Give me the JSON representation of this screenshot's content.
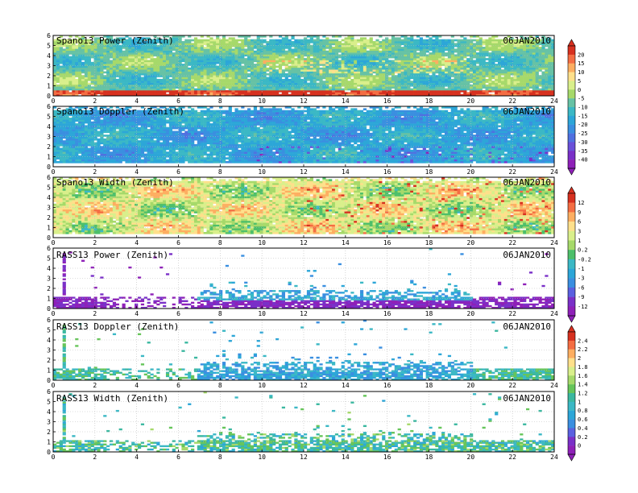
{
  "chart_data": [
    {
      "type": "heatmap",
      "title": "Spano13 Power (Zenith)",
      "date": "06JAN2010",
      "xlim": [
        0,
        24
      ],
      "ylim": [
        0,
        6
      ],
      "x_ticks": [
        "0",
        "2",
        "4",
        "6",
        "8",
        "10",
        "12",
        "14",
        "16",
        "18",
        "20",
        "22",
        "24"
      ],
      "y_ticks": [
        "0",
        "1",
        "2",
        "3",
        "4",
        "5",
        "6"
      ],
      "grid": true,
      "colorbar": "power"
    },
    {
      "type": "heatmap",
      "title": "Spano13 Doppler (Zenith)",
      "date": "06JAN2010",
      "xlim": [
        0,
        24
      ],
      "ylim": [
        0,
        6
      ],
      "x_ticks": [
        "0",
        "2",
        "4",
        "6",
        "8",
        "10",
        "12",
        "14",
        "16",
        "18",
        "20",
        "22",
        "24"
      ],
      "y_ticks": [
        "0",
        "1",
        "2",
        "3",
        "4",
        "5",
        "6"
      ],
      "grid": true,
      "colorbar": "power"
    },
    {
      "type": "heatmap",
      "title": "Spano13 Width (Zenith)",
      "date": "06JAN2010",
      "xlim": [
        0,
        24
      ],
      "ylim": [
        0,
        6
      ],
      "x_ticks": [
        "0",
        "2",
        "4",
        "6",
        "8",
        "10",
        "12",
        "14",
        "16",
        "18",
        "20",
        "22",
        "24"
      ],
      "y_ticks": [
        "0",
        "1",
        "2",
        "3",
        "4",
        "5",
        "6"
      ],
      "grid": true,
      "colorbar": "doppler"
    },
    {
      "type": "heatmap",
      "title": "RASS13 Power (Zenith)",
      "date": "06JAN2010",
      "xlim": [
        0,
        24
      ],
      "ylim": [
        0,
        6
      ],
      "x_ticks": [
        "0",
        "2",
        "4",
        "6",
        "8",
        "10",
        "12",
        "14",
        "16",
        "18",
        "20",
        "22",
        "24"
      ],
      "y_ticks": [
        "0",
        "1",
        "2",
        "3",
        "4",
        "5",
        "6"
      ],
      "grid": true,
      "colorbar": "doppler"
    },
    {
      "type": "heatmap",
      "title": "RASS13 Doppler (Zenith)",
      "date": "06JAN2010",
      "xlim": [
        0,
        24
      ],
      "ylim": [
        0,
        6
      ],
      "x_ticks": [
        "0",
        "2",
        "4",
        "6",
        "8",
        "10",
        "12",
        "14",
        "16",
        "18",
        "20",
        "22",
        "24"
      ],
      "y_ticks": [
        "0",
        "1",
        "2",
        "3",
        "4",
        "5",
        "6"
      ],
      "grid": true,
      "colorbar": "width"
    },
    {
      "type": "heatmap",
      "title": "RASS13 Width (Zenith)",
      "date": "06JAN2010",
      "xlim": [
        0,
        24
      ],
      "ylim": [
        0,
        6
      ],
      "x_ticks": [
        "0",
        "2",
        "4",
        "6",
        "8",
        "10",
        "12",
        "14",
        "16",
        "18",
        "20",
        "22",
        "24"
      ],
      "y_ticks": [
        "0",
        "1",
        "2",
        "3",
        "4",
        "5",
        "6"
      ],
      "grid": true,
      "colorbar": "width"
    }
  ],
  "colorbars": {
    "power": {
      "labels": [
        "20",
        "15",
        "10",
        "5",
        "0",
        "-5",
        "-10",
        "-15",
        "-20",
        "-25",
        "-30",
        "-35",
        "-40"
      ],
      "colors": [
        "#d7301f",
        "#f46d43",
        "#fdae61",
        "#fee08b",
        "#d9ef8b",
        "#a6d96a",
        "#66c2a5",
        "#3bb8c5",
        "#2ca6d8",
        "#3a8fe0",
        "#5070e0",
        "#6a50d8",
        "#7a30c8",
        "#8e20b8"
      ]
    },
    "doppler": {
      "labels": [
        "12",
        "9",
        "6",
        "3",
        "1",
        "0.2",
        "-0.2",
        "-1",
        "-3",
        "-6",
        "-9",
        "-12"
      ],
      "colors": [
        "#d7301f",
        "#f46d43",
        "#fdae61",
        "#fee08b",
        "#d9ef8b",
        "#a6d96a",
        "#4dbf6a",
        "#3bb8c5",
        "#2ca6d8",
        "#3a8fe0",
        "#5a60e0",
        "#7a30c8",
        "#8e20b8"
      ]
    },
    "width": {
      "labels": [
        "2.4",
        "2.2",
        "2",
        "1.8",
        "1.6",
        "1.4",
        "1.2",
        "1",
        "0.8",
        "0.6",
        "0.4",
        "0.2",
        "0"
      ],
      "colors": [
        "#d7301f",
        "#f46d43",
        "#fdae61",
        "#fee08b",
        "#d9ef8b",
        "#a6d96a",
        "#66c55a",
        "#3bb8a0",
        "#3bb8c5",
        "#2ca6d8",
        "#3a8fe0",
        "#5a60e0",
        "#7a30c8",
        "#8e20b8"
      ]
    }
  }
}
